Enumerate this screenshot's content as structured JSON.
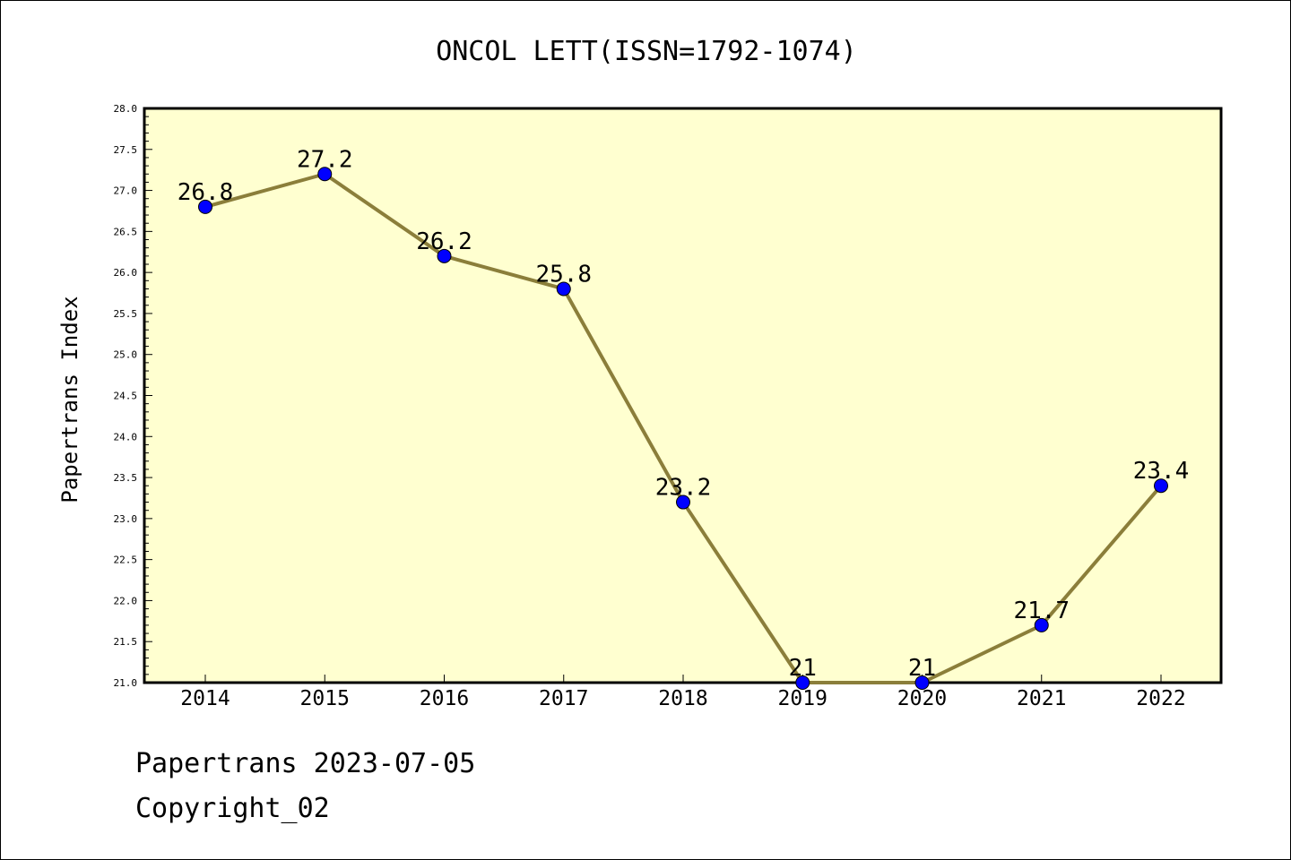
{
  "chart_data": {
    "type": "line",
    "title": "ONCOL LETT(ISSN=1792-1074)",
    "ylabel": "Papertrans Index",
    "xlabel": "",
    "categories": [
      "2014",
      "2015",
      "2016",
      "2017",
      "2018",
      "2019",
      "2020",
      "2021",
      "2022"
    ],
    "series": [
      {
        "values": [
          26.8,
          27.2,
          26.2,
          25.8,
          23.2,
          21,
          21,
          21.7,
          23.4
        ],
        "data_labels": [
          "26.8",
          "27.2",
          "26.2",
          "25.8",
          "23.2",
          "21",
          "21",
          "21.7",
          "23.4"
        ]
      }
    ],
    "ylim": [
      21.0,
      28.0
    ],
    "yticks": [
      "21.0",
      "21.5",
      "22.0",
      "22.5",
      "23.0",
      "23.5",
      "24.0",
      "24.5",
      "25.0",
      "25.5",
      "26.0",
      "26.5",
      "27.0",
      "27.5",
      "28.0"
    ],
    "grid": false,
    "legend": "none",
    "colors": {
      "plot_background": "#FFFFD0",
      "line": "#8B7E3A",
      "marker": "#0000FF"
    }
  },
  "footer": {
    "line1": "Papertrans 2023-07-05",
    "line2": "Copyright_02"
  }
}
